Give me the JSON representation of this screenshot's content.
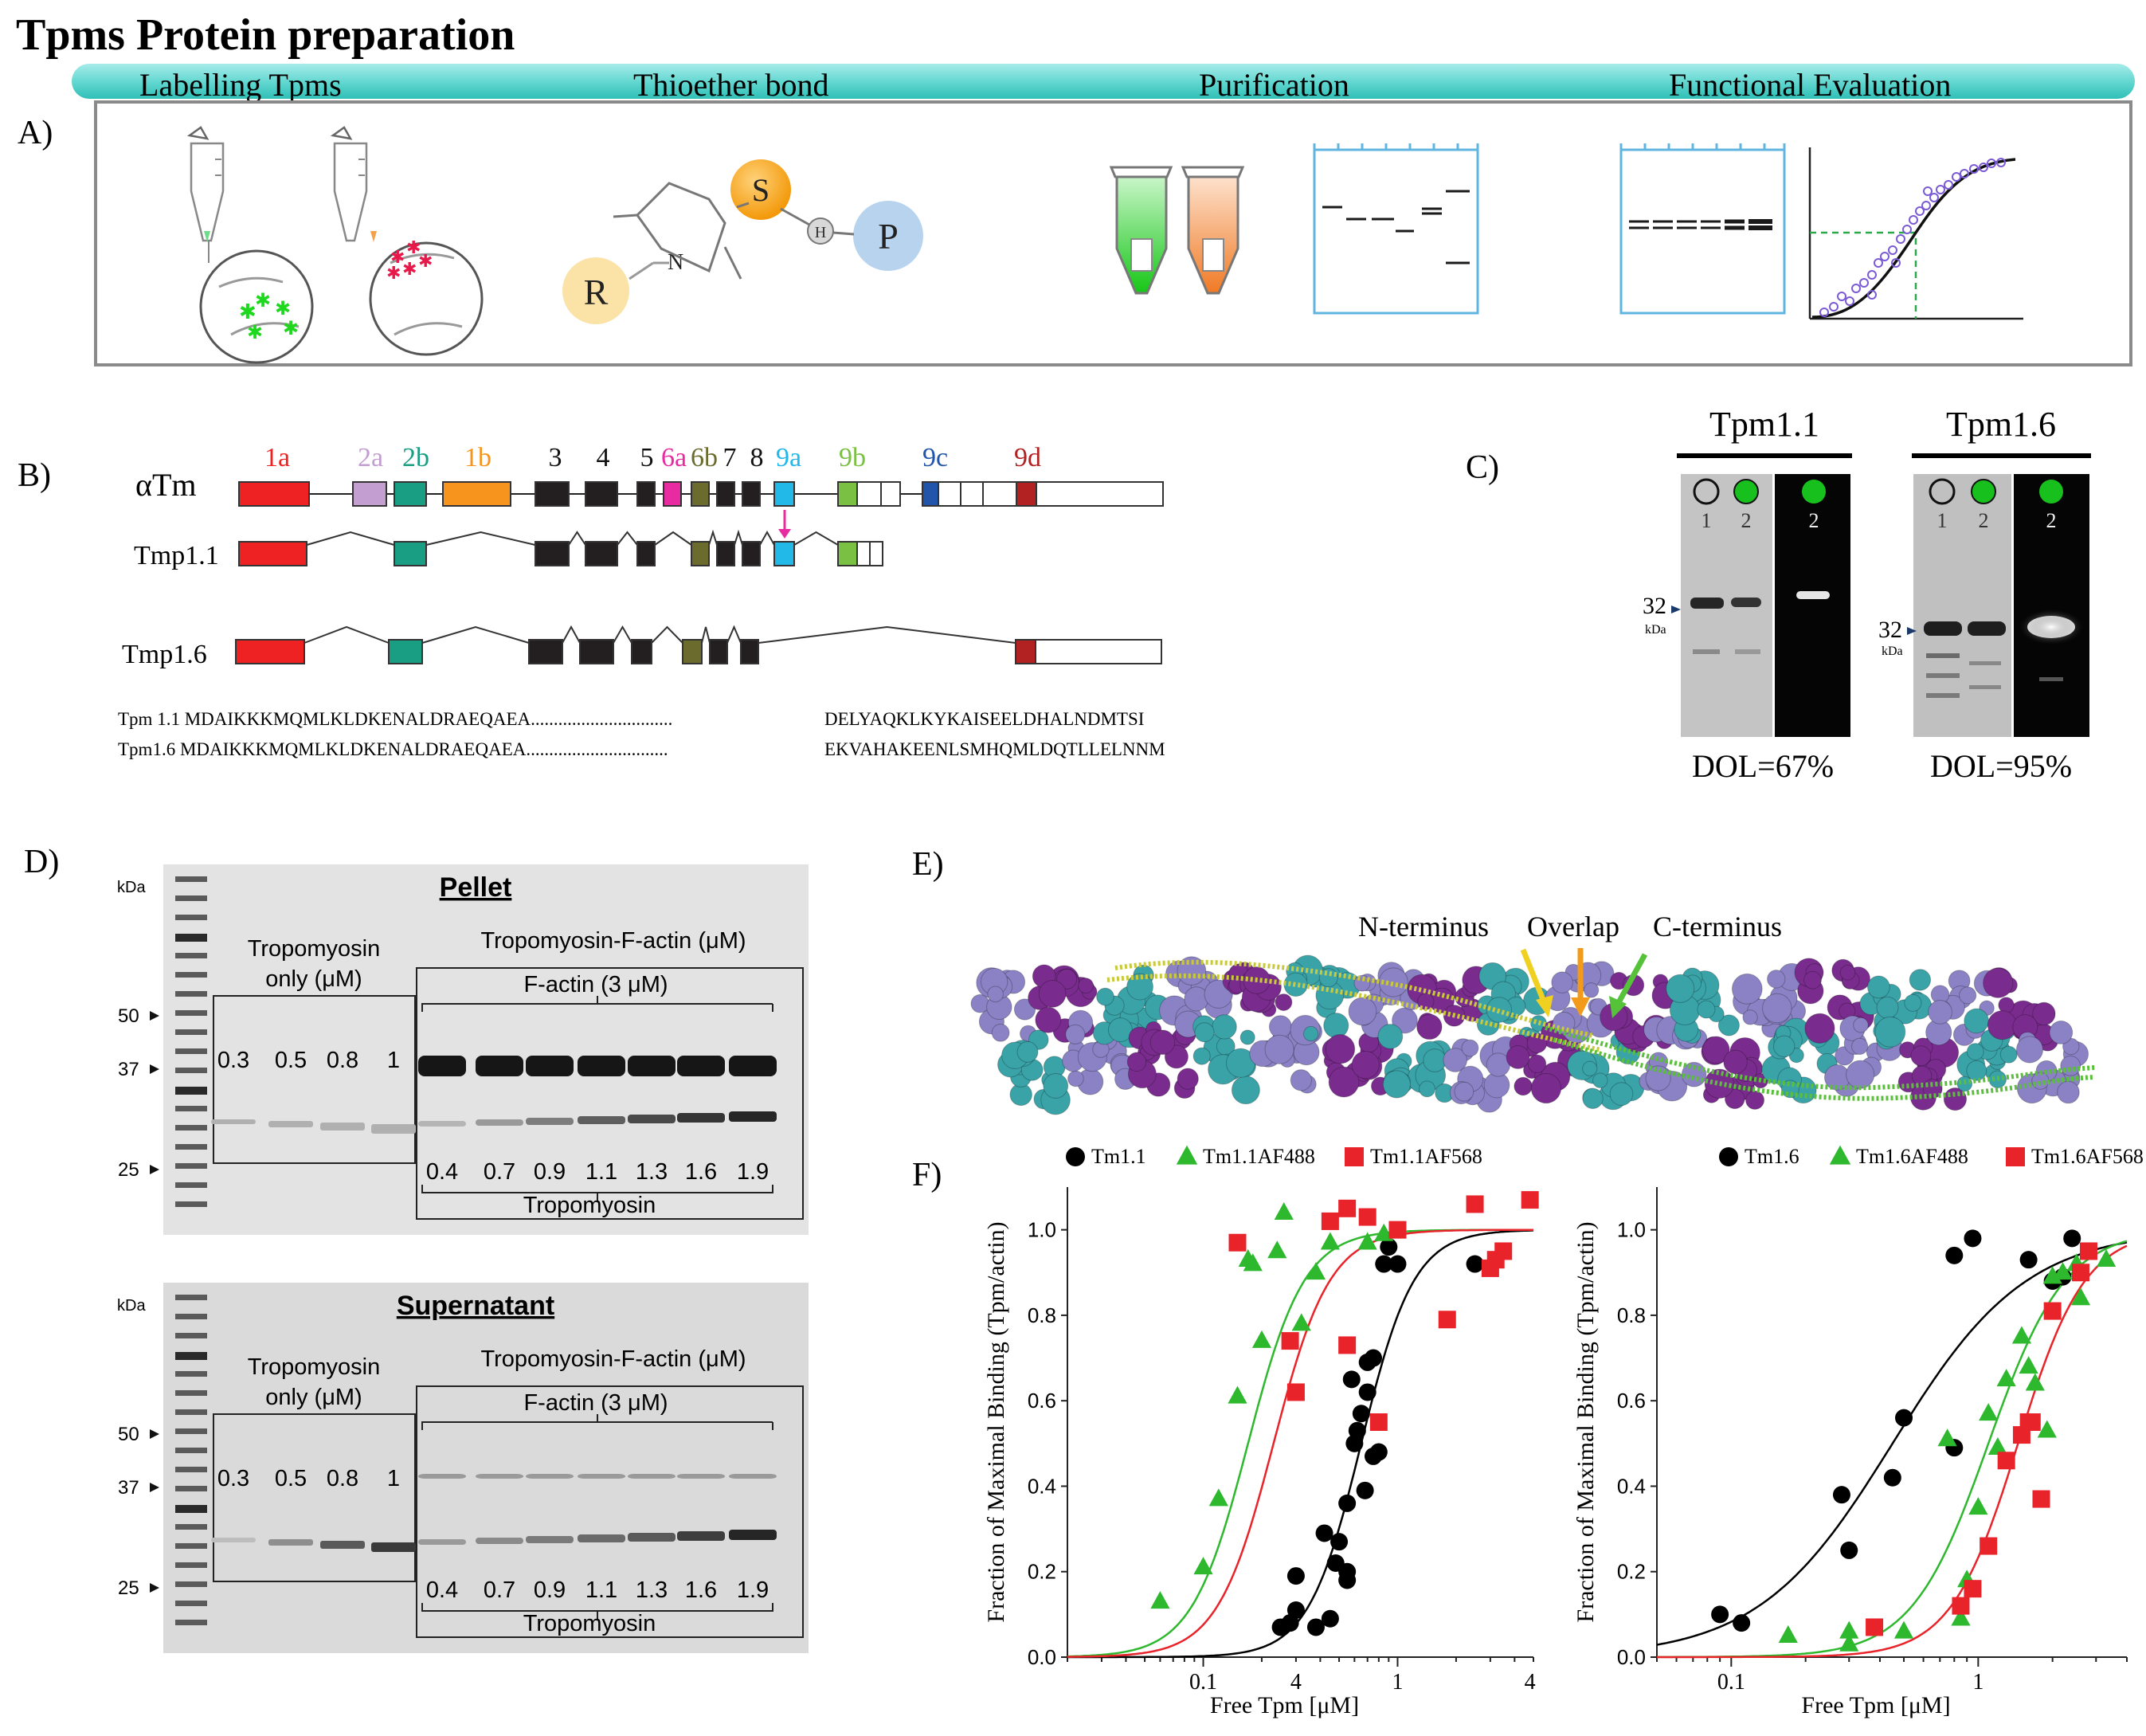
{
  "title": "Tpms Protein preparation",
  "panel_a": {
    "label": "A)",
    "steps": [
      "Labelling  Tpms",
      "Thioether bond",
      "Purification",
      "Functional Evaluation"
    ],
    "chem": {
      "s": "S",
      "h": "H",
      "p": "P",
      "n": "N",
      "r": "R"
    }
  },
  "panel_b": {
    "label": "B)",
    "rows": [
      "αTm",
      "Tmp1.1",
      "Tmp1.6"
    ],
    "exons": [
      "1a",
      "2a",
      "2b",
      "1b",
      "3",
      "4",
      "5",
      "6a",
      "6b",
      "7",
      "8",
      "9a",
      "9b",
      "9c",
      "9d"
    ],
    "exon_colors": {
      "1a": "#ee2222",
      "2a": "#c39ed1",
      "2b": "#1a9e83",
      "1b": "#f7941d",
      "6a": "#e82ba0",
      "6b": "#6b6b2e",
      "9a": "#22b8e8",
      "9b": "#7ac143",
      "9c": "#2255aa",
      "9d": "#b22222",
      "dark": "#231f20"
    },
    "sequences": [
      {
        "name": "Tpm 1.1",
        "n_term": "MDAIKKKMQMLKLDKENALDRAEQAEA",
        "dots": "...............................",
        "c_term": "DELYAQKLKYKAISEELDHALNDMTSI"
      },
      {
        "name": "Tpm1.6",
        "n_term": "MDAIKKKMQMLKLDKENALDRAEQAEA",
        "dots": "...............................",
        "c_term": "EKVAHAKEENLSMHQMLDQTLLELNNM"
      }
    ]
  },
  "panel_c": {
    "label": "C)",
    "gels": [
      {
        "title": "Tpm1.1",
        "lanes": [
          "1",
          "2",
          "2"
        ],
        "marker": "32",
        "unit": "kDa",
        "dol": "DOL=67%"
      },
      {
        "title": "Tpm1.6",
        "lanes": [
          "1",
          "2",
          "2"
        ],
        "marker": "32",
        "unit": "kDa",
        "dol": "DOL=95%"
      }
    ]
  },
  "panel_d": {
    "label": "D)",
    "gels": [
      {
        "title": "Pellet",
        "kda": "kDa",
        "markers": [
          "50",
          "37",
          "25"
        ],
        "box1_title": [
          "Tropomyosin",
          "only (μM)"
        ],
        "box1_values": [
          "0.3",
          "0.5",
          "0.8",
          "1"
        ],
        "box2_title": "Tropomyosin-F-actin (μM)",
        "factin": "F-actin (3 μM)",
        "box2_values": [
          "0.4",
          "0.7",
          "0.9",
          "1.1",
          "1.3",
          "1.6",
          "1.9"
        ],
        "bottom": "Tropomyosin"
      },
      {
        "title": "Supernatant",
        "kda": "kDa",
        "markers": [
          "50",
          "37",
          "25"
        ],
        "box1_title": [
          "Tropomyosin",
          "only (μM)"
        ],
        "box1_values": [
          "0.3",
          "0.5",
          "0.8",
          "1"
        ],
        "box2_title": "Tropomyosin-F-actin (μM)",
        "factin": "F-actin (3 μM)",
        "box2_values": [
          "0.4",
          "0.7",
          "0.9",
          "1.1",
          "1.3",
          "1.6",
          "1.9"
        ],
        "bottom": "Tropomyosin"
      }
    ]
  },
  "panel_e": {
    "label": "E)",
    "annotations": [
      "N-terminus",
      "Overlap",
      "C-terminus"
    ],
    "colors": {
      "purple": "#7a2c8e",
      "brown": "#7a4a1e",
      "teal": "#3aa3a8",
      "lavender": "#8a82c4",
      "yellow": "#c9c93a",
      "green": "#5abf3a"
    }
  },
  "panel_f": {
    "label": "F)",
    "chart_data": [
      {
        "type": "scatter",
        "xlabel": "Free Tpm [μM]",
        "ylabel": "Fraction of Maximal Binding (Tpm/actin)",
        "xscale": "log",
        "xlim": [
          0.02,
          5
        ],
        "ylim": [
          0,
          1.1
        ],
        "xticklabels": [
          "0.1",
          "4",
          "1",
          "4"
        ],
        "yticks": [
          "0.0",
          "0.2",
          "0.4",
          "0.6",
          "0.8",
          "1.0"
        ],
        "legend": [
          "Tm1.1",
          "Tm1.1AF488",
          "Tm1.1AF568"
        ],
        "series": [
          {
            "name": "Tm1.1",
            "color": "#000000",
            "marker": "circle",
            "k": 0.65,
            "n": 3.2,
            "points": [
              [
                0.25,
                0.07
              ],
              [
                0.28,
                0.08
              ],
              [
                0.3,
                0.11
              ],
              [
                0.3,
                0.19
              ],
              [
                0.38,
                0.07
              ],
              [
                0.42,
                0.29
              ],
              [
                0.45,
                0.09
              ],
              [
                0.48,
                0.22
              ],
              [
                0.5,
                0.27
              ],
              [
                0.55,
                0.18
              ],
              [
                0.55,
                0.2
              ],
              [
                0.55,
                0.36
              ],
              [
                0.58,
                0.65
              ],
              [
                0.6,
                0.5
              ],
              [
                0.62,
                0.53
              ],
              [
                0.65,
                0.57
              ],
              [
                0.68,
                0.39
              ],
              [
                0.7,
                0.62
              ],
              [
                0.7,
                0.69
              ],
              [
                0.75,
                0.47
              ],
              [
                0.75,
                0.7
              ],
              [
                0.8,
                0.48
              ],
              [
                0.85,
                0.92
              ],
              [
                0.9,
                0.96
              ],
              [
                1.0,
                0.92
              ],
              [
                2.5,
                0.92
              ]
            ]
          },
          {
            "name": "Tm1.1AF488",
            "color": "#2db82d",
            "marker": "triangle",
            "k": 0.17,
            "n": 3.0,
            "points": [
              [
                0.06,
                0.13
              ],
              [
                0.1,
                0.21
              ],
              [
                0.12,
                0.37
              ],
              [
                0.15,
                0.61
              ],
              [
                0.2,
                0.74
              ],
              [
                0.24,
                0.95
              ],
              [
                0.17,
                0.93
              ],
              [
                0.18,
                0.92
              ],
              [
                0.26,
                1.04
              ],
              [
                0.32,
                0.78
              ],
              [
                0.38,
                0.9
              ],
              [
                0.45,
                0.97
              ],
              [
                0.7,
                0.97
              ],
              [
                0.85,
                0.99
              ]
            ]
          },
          {
            "name": "Tm1.1AF568",
            "color": "#e8232a",
            "marker": "square",
            "k": 0.23,
            "n": 3.0,
            "points": [
              [
                0.15,
                0.97
              ],
              [
                0.28,
                0.74
              ],
              [
                0.3,
                0.62
              ],
              [
                0.45,
                1.02
              ],
              [
                0.55,
                1.05
              ],
              [
                0.55,
                0.73
              ],
              [
                0.7,
                1.03
              ],
              [
                0.8,
                0.55
              ],
              [
                1.0,
                1.0
              ],
              [
                1.8,
                0.79
              ],
              [
                2.5,
                1.06
              ],
              [
                3.0,
                0.91
              ],
              [
                3.2,
                0.93
              ],
              [
                3.5,
                0.95
              ],
              [
                4.8,
                1.07
              ]
            ]
          }
        ]
      },
      {
        "type": "scatter",
        "xlabel": "Free Tpm [μM]",
        "ylabel": "Fraction of Maximal Binding (Tpm/actin)",
        "xscale": "log",
        "xlim": [
          0.05,
          4
        ],
        "ylim": [
          0,
          1.1
        ],
        "xticklabels": [
          "0.1",
          "1"
        ],
        "yticks": [
          "0.0",
          "0.2",
          "0.4",
          "0.6",
          "0.8",
          "1.0"
        ],
        "legend": [
          "Tm1.6",
          "Tm1.6AF488",
          "Tm1.6AF568"
        ],
        "series": [
          {
            "name": "Tm1.6",
            "color": "#000000",
            "marker": "circle",
            "k": 0.45,
            "n": 1.6,
            "points": [
              [
                0.09,
                0.1
              ],
              [
                0.11,
                0.08
              ],
              [
                0.28,
                0.38
              ],
              [
                0.3,
                0.25
              ],
              [
                0.45,
                0.42
              ],
              [
                0.5,
                0.56
              ],
              [
                0.8,
                0.49
              ],
              [
                0.8,
                0.94
              ],
              [
                0.95,
                0.98
              ],
              [
                1.6,
                0.93
              ],
              [
                2.0,
                0.88
              ],
              [
                2.2,
                0.89
              ],
              [
                2.4,
                0.98
              ]
            ]
          },
          {
            "name": "Tm1.6AF488",
            "color": "#2db82d",
            "marker": "triangle",
            "k": 1.1,
            "n": 2.8,
            "points": [
              [
                0.17,
                0.05
              ],
              [
                0.3,
                0.03
              ],
              [
                0.3,
                0.06
              ],
              [
                0.5,
                0.06
              ],
              [
                0.75,
                0.51
              ],
              [
                0.85,
                0.09
              ],
              [
                0.9,
                0.18
              ],
              [
                1.0,
                0.35
              ],
              [
                1.1,
                0.57
              ],
              [
                1.2,
                0.49
              ],
              [
                1.3,
                0.65
              ],
              [
                1.5,
                0.75
              ],
              [
                1.6,
                0.68
              ],
              [
                1.7,
                0.64
              ],
              [
                1.9,
                0.53
              ],
              [
                2.0,
                0.89
              ],
              [
                2.2,
                0.9
              ],
              [
                2.5,
                0.92
              ],
              [
                2.6,
                0.84
              ],
              [
                3.3,
                0.93
              ]
            ]
          },
          {
            "name": "Tm1.6AF568",
            "color": "#e8232a",
            "marker": "square",
            "k": 1.45,
            "n": 3.2,
            "points": [
              [
                0.38,
                0.07
              ],
              [
                0.85,
                0.12
              ],
              [
                0.95,
                0.16
              ],
              [
                1.1,
                0.26
              ],
              [
                1.3,
                0.46
              ],
              [
                1.5,
                0.52
              ],
              [
                1.6,
                0.55
              ],
              [
                1.65,
                0.55
              ],
              [
                1.8,
                0.37
              ],
              [
                2.0,
                0.81
              ],
              [
                2.6,
                0.9
              ],
              [
                2.8,
                0.95
              ]
            ]
          }
        ]
      }
    ]
  }
}
